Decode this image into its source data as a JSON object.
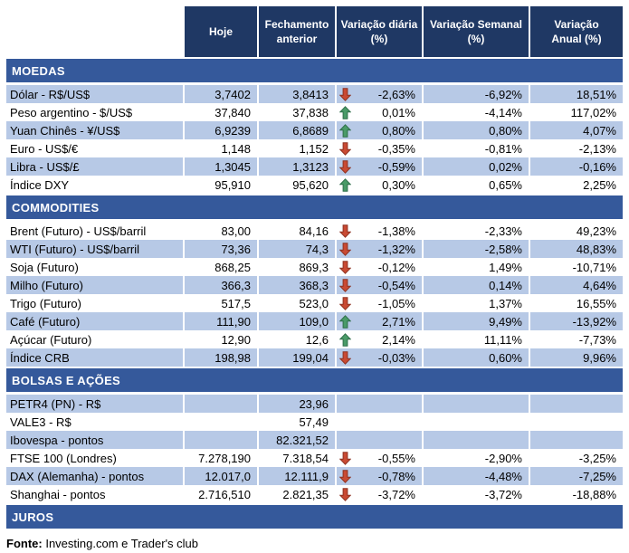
{
  "colors": {
    "header-bg": "#1F3864",
    "section-bg": "#35599B",
    "row-shaded": "#B7C9E6",
    "arrow-up-fill": "#4A9B68",
    "arrow-up-border": "#2E6E49",
    "arrow-down-fill": "#C94A33",
    "arrow-down-border": "#8E3120"
  },
  "header": {
    "columns": [
      {
        "lines": [
          "Hoje"
        ]
      },
      {
        "lines": [
          "Fechamento",
          "anterior"
        ]
      },
      {
        "lines": [
          "Variação diária",
          "(%)"
        ]
      },
      {
        "lines": [
          "Variação Semanal",
          "(%)"
        ]
      },
      {
        "lines": [
          "Variação",
          "Anual (%)"
        ]
      }
    ]
  },
  "sections": [
    {
      "title": "MOEDAS",
      "rows": [
        {
          "label": "Dólar - R$/US$",
          "hoje": "3,7402",
          "fechamento": "3,8413",
          "trend": "down",
          "diaria": "-2,63%",
          "semanal": "-6,92%",
          "anual": "18,51%",
          "shaded": true
        },
        {
          "label": "Peso argentino - $/US$",
          "hoje": "37,840",
          "fechamento": "37,838",
          "trend": "up",
          "diaria": "0,01%",
          "semanal": "-4,14%",
          "anual": "117,02%",
          "shaded": false
        },
        {
          "label": "Yuan Chinês - ¥/US$",
          "hoje": "6,9239",
          "fechamento": "6,8689",
          "trend": "up",
          "diaria": "0,80%",
          "semanal": "0,80%",
          "anual": "4,07%",
          "shaded": true
        },
        {
          "label": "Euro - US$/€",
          "hoje": "1,148",
          "fechamento": "1,152",
          "trend": "down",
          "diaria": "-0,35%",
          "semanal": "-0,81%",
          "anual": "-2,13%",
          "shaded": false
        },
        {
          "label": "Libra - US$/£",
          "hoje": "1,3045",
          "fechamento": "1,3123",
          "trend": "down",
          "diaria": "-0,59%",
          "semanal": "0,02%",
          "anual": "-0,16%",
          "shaded": true
        },
        {
          "label": "Índice DXY",
          "hoje": "95,910",
          "fechamento": "95,620",
          "trend": "up",
          "diaria": "0,30%",
          "semanal": "0,65%",
          "anual": "2,25%",
          "shaded": false
        }
      ]
    },
    {
      "title": "COMMODITIES",
      "rows": [
        {
          "label": "Brent (Futuro) - US$/barril",
          "hoje": "83,00",
          "fechamento": "84,16",
          "trend": "down",
          "diaria": "-1,38%",
          "semanal": "-2,33%",
          "anual": "49,23%",
          "shaded": false
        },
        {
          "label": "WTI (Futuro) - US$/barril",
          "hoje": "73,36",
          "fechamento": "74,3",
          "trend": "down",
          "diaria": "-1,32%",
          "semanal": "-2,58%",
          "anual": "48,83%",
          "shaded": true
        },
        {
          "label": "Soja (Futuro)",
          "hoje": "868,25",
          "fechamento": "869,3",
          "trend": "down",
          "diaria": "-0,12%",
          "semanal": "1,49%",
          "anual": "-10,71%",
          "shaded": false
        },
        {
          "label": "Milho (Futuro)",
          "hoje": "366,3",
          "fechamento": "368,3",
          "trend": "down",
          "diaria": "-0,54%",
          "semanal": "0,14%",
          "anual": "4,64%",
          "shaded": true
        },
        {
          "label": "Trigo (Futuro)",
          "hoje": "517,5",
          "fechamento": "523,0",
          "trend": "down",
          "diaria": "-1,05%",
          "semanal": "1,37%",
          "anual": "16,55%",
          "shaded": false
        },
        {
          "label": "Café (Futuro)",
          "hoje": "111,90",
          "fechamento": "109,0",
          "trend": "up",
          "diaria": "2,71%",
          "semanal": "9,49%",
          "anual": "-13,92%",
          "shaded": true
        },
        {
          "label": "Açúcar (Futuro)",
          "hoje": "12,90",
          "fechamento": "12,6",
          "trend": "up",
          "diaria": "2,14%",
          "semanal": "11,11%",
          "anual": "-7,73%",
          "shaded": false
        },
        {
          "label": "Índice CRB",
          "hoje": "198,98",
          "fechamento": "199,04",
          "trend": "down",
          "diaria": "-0,03%",
          "semanal": "0,60%",
          "anual": "9,96%",
          "shaded": true
        }
      ]
    },
    {
      "title": "BOLSAS E AÇÕES",
      "rows": [
        {
          "label": "PETR4 (PN) - R$",
          "hoje": "",
          "fechamento": "23,96",
          "trend": "",
          "diaria": "",
          "semanal": "",
          "anual": "",
          "shaded": true
        },
        {
          "label": "VALE3 - R$",
          "hoje": "",
          "fechamento": "57,49",
          "trend": "",
          "diaria": "",
          "semanal": "",
          "anual": "",
          "shaded": false
        },
        {
          "label": "Ibovespa - pontos",
          "hoje": "",
          "fechamento": "82.321,52",
          "trend": "",
          "diaria": "",
          "semanal": "",
          "anual": "",
          "shaded": true
        },
        {
          "label": "FTSE 100 (Londres)",
          "hoje": "7.278,190",
          "fechamento": "7.318,54",
          "trend": "down",
          "diaria": "-0,55%",
          "semanal": "-2,90%",
          "anual": "-3,25%",
          "shaded": false
        },
        {
          "label": "DAX (Alemanha) - pontos",
          "hoje": "12.017,0",
          "fechamento": "12.111,9",
          "trend": "down",
          "diaria": "-0,78%",
          "semanal": "-4,48%",
          "anual": "-7,25%",
          "shaded": true
        },
        {
          "label": "Shanghai - pontos",
          "hoje": "2.716,510",
          "fechamento": "2.821,35",
          "trend": "down",
          "diaria": "-3,72%",
          "semanal": "-3,72%",
          "anual": "-18,88%",
          "shaded": false
        }
      ]
    },
    {
      "title": "JUROS",
      "rows": []
    }
  ],
  "footer": {
    "label": "Fonte:",
    "text": "Investing.com e Trader's club"
  }
}
